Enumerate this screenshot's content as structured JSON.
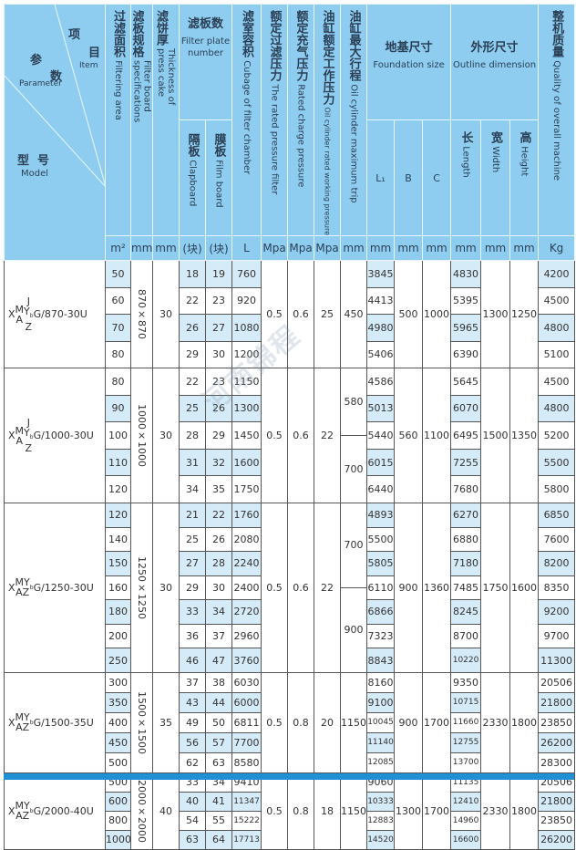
{
  "header": {
    "model_cell": {
      "item_cn1": "项",
      "item_cn2": "目",
      "item_en": "Item",
      "param_cn1": "参",
      "param_cn2": "数",
      "param_en": "Parameter",
      "model_cn": "型  号",
      "model_en": "Model"
    },
    "area": {
      "cn": "过滤面积",
      "en": "Filtering area",
      "unit": "m²"
    },
    "spec": {
      "cn": "滤板规格",
      "en": "Filter board specifications",
      "unit": "mm"
    },
    "cake": {
      "cn": "滤饼厚",
      "en": "Thickness of press cake",
      "unit": "mm"
    },
    "plates": {
      "cn": "滤板数",
      "en": "Filter plate number"
    },
    "clapboard": {
      "cn": "隔板",
      "en": "Clapboard",
      "unit": "(块)"
    },
    "film": {
      "cn": "膜板",
      "en": "Film board",
      "unit": "(块)"
    },
    "chamber": {
      "cn": "滤室容积",
      "en": "Cubage of filter chamber",
      "unit": "L"
    },
    "pressure": {
      "cn": "额定过滤压力",
      "en": "The rated pressure filter",
      "unit": "Mpa"
    },
    "charge": {
      "cn": "额定充气压力",
      "en": "Rated charge pressure",
      "unit": "Mpa"
    },
    "working": {
      "cn": "油缸额定工作压力",
      "en": "Oil cylinder rated working pressure",
      "unit": "Mpa"
    },
    "stroke": {
      "cn": "油缸最大行程",
      "en": "Oil cylinder maximum trip",
      "unit": "mm"
    },
    "foundation": {
      "cn": "地基尺寸",
      "en": "Foundation size"
    },
    "l1": {
      "label": "L₁",
      "unit": "mm"
    },
    "b": {
      "label": "B",
      "unit": "mm"
    },
    "c": {
      "label": "C",
      "unit": "mm"
    },
    "outline": {
      "cn": "外形尺寸",
      "en": "Outline dimension"
    },
    "length": {
      "cn": "长",
      "en": "Length",
      "unit": "mm"
    },
    "width": {
      "cn": "宽",
      "en": "Width",
      "unit": "mm"
    },
    "height": {
      "cn": "高",
      "en": "Height",
      "unit": "mm"
    },
    "weight": {
      "cn": "整机质量",
      "en": "Quality of overall machine",
      "unit": "Kg"
    }
  },
  "watermark": "河南锦程",
  "colors": {
    "header_bg": "#8fcdf0",
    "highlight": "#d6ebf8",
    "bottom_bar": "#1f8fd6"
  },
  "sections": [
    {
      "model": {
        "pre": "X",
        "col1": [
          "M",
          "A"
        ],
        "col2": [
          "J",
          "Y",
          "Z"
        ],
        "mark": "b",
        "suffix": "G/870-30U"
      },
      "spec": "870×870",
      "cake": "30",
      "pressure": "0.5",
      "charge": "0.6",
      "working": "25",
      "stroke": [
        "450"
      ],
      "b": "500",
      "c": "1000",
      "width": "1300",
      "height": "1250",
      "hl_start": 1,
      "rows": [
        [
          "50",
          "18",
          "19",
          "760",
          "3845",
          "4830",
          "4200"
        ],
        [
          "60",
          "22",
          "23",
          "920",
          "4413",
          "5395",
          "4500"
        ],
        [
          "70",
          "26",
          "27",
          "1080",
          "4980",
          "5965",
          "4800"
        ],
        [
          "80",
          "29",
          "30",
          "1200",
          "5406",
          "6390",
          "5100"
        ]
      ]
    },
    {
      "model": {
        "pre": "X",
        "col1": [
          "M",
          "A"
        ],
        "col2": [
          "J",
          "Y",
          "Z"
        ],
        "mark": "b",
        "suffix": "G/1000-30U"
      },
      "spec": "1000×1000",
      "cake": "30",
      "pressure": "0.5",
      "charge": "0.6",
      "working": "22",
      "stroke": [
        "580",
        "700"
      ],
      "b": "560",
      "c": "1100",
      "width": "1500",
      "height": "1350",
      "hl_start": 0,
      "rows": [
        [
          "80",
          "22",
          "23",
          "1150",
          "4586",
          "5645",
          "4500"
        ],
        [
          "90",
          "25",
          "26",
          "1300",
          "5013",
          "6070",
          "4800"
        ],
        [
          "100",
          "28",
          "29",
          "1450",
          "5440",
          "6495",
          "5200"
        ],
        [
          "110",
          "31",
          "32",
          "1600",
          "6015",
          "7255",
          "5500"
        ],
        [
          "120",
          "34",
          "35",
          "1750",
          "6440",
          "7680",
          "5800"
        ]
      ]
    },
    {
      "model": {
        "pre": "X",
        "col1": [
          "MY",
          "AZ"
        ],
        "col2": [],
        "mark": "b",
        "suffix": "G/1250-30U"
      },
      "spec": "1250×1250",
      "cake": "30",
      "pressure": "0.5",
      "charge": "0.6",
      "working": "22",
      "stroke": [
        "700",
        "900"
      ],
      "b": "900",
      "c": "1360",
      "width": "1750",
      "height": "1600",
      "hl_start": 1,
      "rows": [
        [
          "120",
          "21",
          "22",
          "1760",
          "4893",
          "6270",
          "6850"
        ],
        [
          "140",
          "25",
          "26",
          "2080",
          "5500",
          "6880",
          "7600"
        ],
        [
          "150",
          "27",
          "28",
          "2240",
          "5805",
          "7180",
          "8200"
        ],
        [
          "160",
          "29",
          "30",
          "2400",
          "6110",
          "7485",
          "8350"
        ],
        [
          "180",
          "33",
          "34",
          "2720",
          "6866",
          "8245",
          "9200"
        ],
        [
          "200",
          "36",
          "37",
          "2960",
          "7323",
          "8700",
          "9700"
        ],
        [
          "250",
          "46",
          "47",
          "3760",
          "8843",
          "10220",
          "11300"
        ]
      ]
    },
    {
      "model": {
        "pre": "X",
        "col1": [
          "MY",
          "AZ"
        ],
        "col2": [],
        "mark": "b",
        "suffix": "G/1500-35U"
      },
      "spec": "1500×1500",
      "cake": "35",
      "pressure": "0.5",
      "charge": "0.8",
      "working": "20",
      "stroke": [
        "1150"
      ],
      "b": "900",
      "c": "1700",
      "width": "2330",
      "height": "1800",
      "hl_start": 0,
      "rows": [
        [
          "300",
          "37",
          "38",
          "6030",
          "8160",
          "9350",
          "20506"
        ],
        [
          "350",
          "43",
          "44",
          "6000",
          "9100",
          "10715",
          "21800"
        ],
        [
          "400",
          "49",
          "50",
          "6811",
          "10045",
          "11660",
          "23850"
        ],
        [
          "450",
          "56",
          "57",
          "7700",
          "11140",
          "12755",
          "26200"
        ],
        [
          "500",
          "62",
          "63",
          "8580",
          "12085",
          "13700",
          "28300"
        ]
      ]
    },
    {
      "model": {
        "pre": "X",
        "col1": [
          "MY",
          "AZ"
        ],
        "col2": [],
        "mark": "b",
        "suffix": "G/2000-40U"
      },
      "spec": "2000×2000",
      "cake": "40",
      "pressure": "0.5",
      "charge": "0.8",
      "working": "18",
      "stroke": [
        "1150"
      ],
      "b": "1300",
      "c": "1700",
      "width": "2330",
      "height": "1800",
      "hl_start": 0,
      "rows": [
        [
          "500",
          "33",
          "34",
          "9410",
          "9060",
          "11135",
          "20506"
        ],
        [
          "600",
          "40",
          "41",
          "11347",
          "10333",
          "12410",
          "21800"
        ],
        [
          "800",
          "54",
          "55",
          "15222",
          "12883",
          "14960",
          "23850"
        ],
        [
          "1000",
          "63",
          "64",
          "17713",
          "14520",
          "16600",
          "26200"
        ]
      ]
    }
  ]
}
